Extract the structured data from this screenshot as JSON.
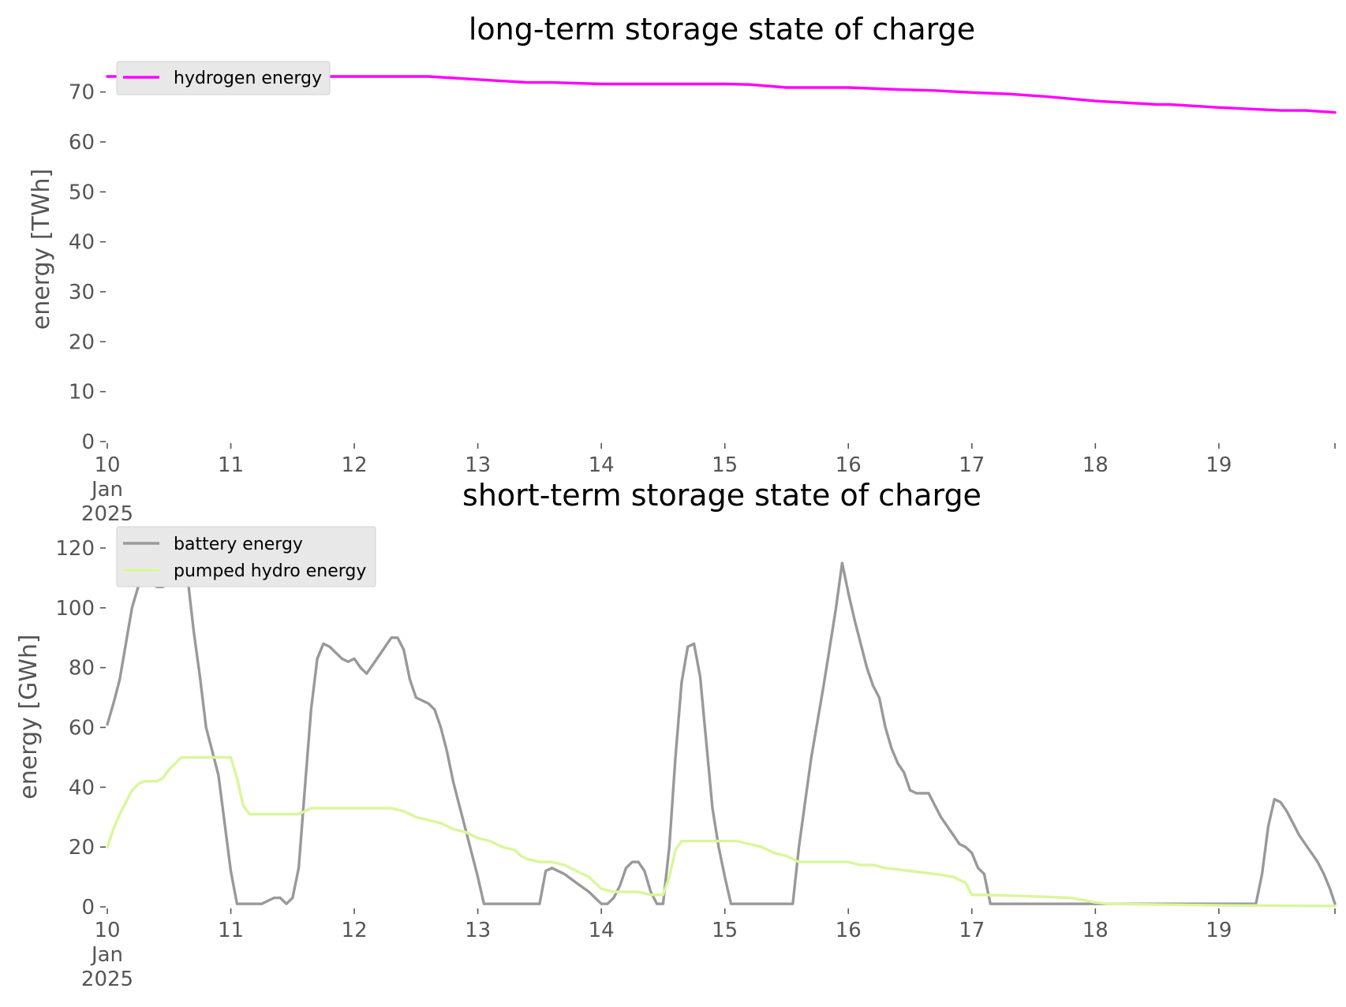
{
  "chart_data": [
    {
      "type": "line",
      "title": "long-term storage state of charge",
      "ylabel": "energy [TWh]",
      "xlabel": "",
      "ylim": [
        0,
        75
      ],
      "yticks": [
        0,
        10,
        20,
        30,
        40,
        50,
        60,
        70
      ],
      "xlim": [
        0,
        9.94
      ],
      "x_axis_kind": "day of Jan 2025",
      "x_tick_labels": [
        {
          "x": 0,
          "lines": [
            "10",
            "Jan",
            "2025"
          ]
        },
        {
          "x": 1,
          "lines": [
            "11"
          ]
        },
        {
          "x": 2,
          "lines": [
            "12"
          ]
        },
        {
          "x": 3,
          "lines": [
            "13"
          ]
        },
        {
          "x": 4,
          "lines": [
            "14"
          ]
        },
        {
          "x": 5,
          "lines": [
            "15"
          ]
        },
        {
          "x": 6,
          "lines": [
            "16"
          ]
        },
        {
          "x": 7,
          "lines": [
            "17"
          ]
        },
        {
          "x": 8,
          "lines": [
            "18"
          ]
        },
        {
          "x": 9,
          "lines": [
            "19"
          ]
        }
      ],
      "legend_loc": "upper left",
      "grid": false,
      "series": [
        {
          "name": "hydrogen energy",
          "color": "#ff00ff",
          "points": [
            [
              0,
              73.1
            ],
            [
              1,
              73.1
            ],
            [
              2,
              73.1
            ],
            [
              2.6,
              73.1
            ],
            [
              3,
              72.5
            ],
            [
              3.4,
              71.9
            ],
            [
              3.6,
              71.9
            ],
            [
              4,
              71.6
            ],
            [
              5,
              71.6
            ],
            [
              5.2,
              71.5
            ],
            [
              5.5,
              70.9
            ],
            [
              6,
              70.9
            ],
            [
              6.4,
              70.5
            ],
            [
              6.7,
              70.3
            ],
            [
              7,
              69.9
            ],
            [
              7.3,
              69.6
            ],
            [
              7.6,
              69.1
            ],
            [
              8,
              68.2
            ],
            [
              8.5,
              67.5
            ],
            [
              8.6,
              67.5
            ],
            [
              9,
              66.9
            ],
            [
              9.5,
              66.3
            ],
            [
              9.7,
              66.3
            ],
            [
              9.94,
              65.9
            ]
          ]
        }
      ]
    },
    {
      "type": "line",
      "title": "short-term storage state of charge",
      "ylabel": "energy [GWh]",
      "xlabel": "",
      "ylim": [
        0,
        125
      ],
      "yticks": [
        0,
        20,
        40,
        60,
        80,
        100,
        120
      ],
      "xlim": [
        0,
        9.94
      ],
      "x_axis_kind": "day of Jan 2025",
      "x_tick_labels": [
        {
          "x": 0,
          "lines": [
            "10",
            "Jan",
            "2025"
          ]
        },
        {
          "x": 1,
          "lines": [
            "11"
          ]
        },
        {
          "x": 2,
          "lines": [
            "12"
          ]
        },
        {
          "x": 3,
          "lines": [
            "13"
          ]
        },
        {
          "x": 4,
          "lines": [
            "14"
          ]
        },
        {
          "x": 5,
          "lines": [
            "15"
          ]
        },
        {
          "x": 6,
          "lines": [
            "16"
          ]
        },
        {
          "x": 7,
          "lines": [
            "17"
          ]
        },
        {
          "x": 8,
          "lines": [
            "18"
          ]
        },
        {
          "x": 9,
          "lines": [
            "19"
          ]
        }
      ],
      "legend_loc": "upper left",
      "grid": false,
      "series": [
        {
          "name": "battery energy",
          "color": "#999999",
          "points": [
            [
              0,
              61
            ],
            [
              0.05,
              68
            ],
            [
              0.1,
              76
            ],
            [
              0.15,
              88
            ],
            [
              0.2,
              100
            ],
            [
              0.25,
              107
            ],
            [
              0.3,
              110
            ],
            [
              0.35,
              110
            ],
            [
              0.4,
              107
            ],
            [
              0.45,
              107
            ],
            [
              0.5,
              109
            ],
            [
              0.55,
              115
            ],
            [
              0.6,
              120
            ],
            [
              0.65,
              110
            ],
            [
              0.7,
              92
            ],
            [
              0.75,
              77
            ],
            [
              0.8,
              60
            ],
            [
              0.85,
              52
            ],
            [
              0.9,
              44
            ],
            [
              0.95,
              28
            ],
            [
              1.0,
              12
            ],
            [
              1.05,
              1
            ],
            [
              1.1,
              1
            ],
            [
              1.15,
              1
            ],
            [
              1.2,
              1
            ],
            [
              1.25,
              1
            ],
            [
              1.3,
              2
            ],
            [
              1.35,
              3
            ],
            [
              1.4,
              3
            ],
            [
              1.45,
              1
            ],
            [
              1.5,
              3
            ],
            [
              1.55,
              13
            ],
            [
              1.6,
              40
            ],
            [
              1.65,
              66
            ],
            [
              1.7,
              83
            ],
            [
              1.75,
              88
            ],
            [
              1.8,
              87
            ],
            [
              1.85,
              85
            ],
            [
              1.9,
              83
            ],
            [
              1.95,
              82
            ],
            [
              2.0,
              83
            ],
            [
              2.05,
              80
            ],
            [
              2.1,
              78
            ],
            [
              2.15,
              81
            ],
            [
              2.2,
              84
            ],
            [
              2.25,
              87
            ],
            [
              2.3,
              90
            ],
            [
              2.35,
              90
            ],
            [
              2.4,
              86
            ],
            [
              2.45,
              76
            ],
            [
              2.5,
              70
            ],
            [
              2.55,
              69
            ],
            [
              2.6,
              68
            ],
            [
              2.65,
              66
            ],
            [
              2.7,
              60
            ],
            [
              2.75,
              52
            ],
            [
              2.8,
              42
            ],
            [
              2.85,
              34
            ],
            [
              2.9,
              26
            ],
            [
              2.95,
              18
            ],
            [
              3.0,
              10
            ],
            [
              3.05,
              1
            ],
            [
              3.5,
              1
            ],
            [
              3.55,
              12
            ],
            [
              3.6,
              13
            ],
            [
              3.7,
              11
            ],
            [
              3.8,
              8
            ],
            [
              3.9,
              5
            ],
            [
              3.95,
              3
            ],
            [
              4.0,
              1
            ],
            [
              4.05,
              1
            ],
            [
              4.1,
              3
            ],
            [
              4.15,
              7
            ],
            [
              4.2,
              13
            ],
            [
              4.25,
              15
            ],
            [
              4.3,
              15
            ],
            [
              4.35,
              12
            ],
            [
              4.4,
              5
            ],
            [
              4.45,
              1
            ],
            [
              4.5,
              1
            ],
            [
              4.55,
              20
            ],
            [
              4.6,
              50
            ],
            [
              4.65,
              75
            ],
            [
              4.7,
              87
            ],
            [
              4.75,
              88
            ],
            [
              4.8,
              77
            ],
            [
              4.85,
              55
            ],
            [
              4.9,
              33
            ],
            [
              4.95,
              20
            ],
            [
              5.0,
              10
            ],
            [
              5.05,
              1
            ],
            [
              5.55,
              1
            ],
            [
              5.6,
              20
            ],
            [
              5.65,
              35
            ],
            [
              5.7,
              50
            ],
            [
              5.75,
              62
            ],
            [
              5.8,
              74
            ],
            [
              5.85,
              87
            ],
            [
              5.9,
              100
            ],
            [
              5.95,
              115
            ],
            [
              6.0,
              105
            ],
            [
              6.05,
              96
            ],
            [
              6.1,
              88
            ],
            [
              6.15,
              80
            ],
            [
              6.2,
              74
            ],
            [
              6.25,
              70
            ],
            [
              6.3,
              60
            ],
            [
              6.35,
              53
            ],
            [
              6.4,
              48
            ],
            [
              6.45,
              45
            ],
            [
              6.5,
              39
            ],
            [
              6.55,
              38
            ],
            [
              6.6,
              38
            ],
            [
              6.65,
              38
            ],
            [
              6.7,
              34
            ],
            [
              6.75,
              30
            ],
            [
              6.8,
              27
            ],
            [
              6.85,
              24
            ],
            [
              6.9,
              21
            ],
            [
              6.95,
              20
            ],
            [
              7.0,
              18
            ],
            [
              7.05,
              13
            ],
            [
              7.1,
              11
            ],
            [
              7.15,
              1
            ],
            [
              9.3,
              1
            ],
            [
              9.35,
              11
            ],
            [
              9.4,
              27
            ],
            [
              9.45,
              36
            ],
            [
              9.5,
              35
            ],
            [
              9.55,
              32
            ],
            [
              9.6,
              28
            ],
            [
              9.65,
              24
            ],
            [
              9.7,
              21
            ],
            [
              9.75,
              18
            ],
            [
              9.8,
              15
            ],
            [
              9.85,
              11
            ],
            [
              9.9,
              6
            ],
            [
              9.94,
              1
            ]
          ]
        },
        {
          "name": "pumped hydro energy",
          "color": "#d8f79a",
          "points": [
            [
              0,
              20
            ],
            [
              0.05,
              26
            ],
            [
              0.1,
              31
            ],
            [
              0.15,
              35
            ],
            [
              0.2,
              39
            ],
            [
              0.25,
              41
            ],
            [
              0.3,
              42
            ],
            [
              0.35,
              42
            ],
            [
              0.4,
              42
            ],
            [
              0.45,
              43
            ],
            [
              0.5,
              46
            ],
            [
              0.55,
              48
            ],
            [
              0.6,
              50
            ],
            [
              0.65,
              50
            ],
            [
              0.7,
              50
            ],
            [
              0.8,
              50
            ],
            [
              0.9,
              50
            ],
            [
              0.95,
              50
            ],
            [
              1.0,
              50
            ],
            [
              1.05,
              43
            ],
            [
              1.1,
              34
            ],
            [
              1.15,
              31
            ],
            [
              1.2,
              31
            ],
            [
              1.3,
              31
            ],
            [
              1.4,
              31
            ],
            [
              1.5,
              31
            ],
            [
              1.55,
              31
            ],
            [
              1.6,
              32
            ],
            [
              1.65,
              33
            ],
            [
              1.7,
              33
            ],
            [
              2.0,
              33
            ],
            [
              2.3,
              33
            ],
            [
              2.4,
              32
            ],
            [
              2.5,
              30
            ],
            [
              2.6,
              29
            ],
            [
              2.7,
              28
            ],
            [
              2.8,
              26
            ],
            [
              2.9,
              25
            ],
            [
              3.0,
              23
            ],
            [
              3.1,
              22
            ],
            [
              3.2,
              20
            ],
            [
              3.3,
              19
            ],
            [
              3.35,
              17
            ],
            [
              3.4,
              16
            ],
            [
              3.5,
              15
            ],
            [
              3.6,
              15
            ],
            [
              3.7,
              14
            ],
            [
              3.8,
              12
            ],
            [
              3.9,
              10
            ],
            [
              4.0,
              6
            ],
            [
              4.1,
              5
            ],
            [
              4.2,
              5
            ],
            [
              4.3,
              5
            ],
            [
              4.4,
              4
            ],
            [
              4.5,
              4
            ],
            [
              4.55,
              10
            ],
            [
              4.6,
              19
            ],
            [
              4.65,
              22
            ],
            [
              4.7,
              22
            ],
            [
              5.0,
              22
            ],
            [
              5.1,
              22
            ],
            [
              5.2,
              21
            ],
            [
              5.3,
              20
            ],
            [
              5.4,
              18
            ],
            [
              5.5,
              17
            ],
            [
              5.6,
              15
            ],
            [
              5.7,
              15
            ],
            [
              6.0,
              15
            ],
            [
              6.1,
              14
            ],
            [
              6.2,
              14
            ],
            [
              6.3,
              13
            ],
            [
              6.5,
              12
            ],
            [
              6.7,
              11
            ],
            [
              6.85,
              10
            ],
            [
              6.9,
              9
            ],
            [
              6.95,
              8
            ],
            [
              7.0,
              4
            ],
            [
              7.1,
              4
            ],
            [
              7.5,
              3.5
            ],
            [
              7.8,
              3
            ],
            [
              8.0,
              1.5
            ],
            [
              8.1,
              1
            ],
            [
              9.0,
              0.5
            ],
            [
              9.94,
              0.3
            ]
          ]
        }
      ]
    }
  ]
}
